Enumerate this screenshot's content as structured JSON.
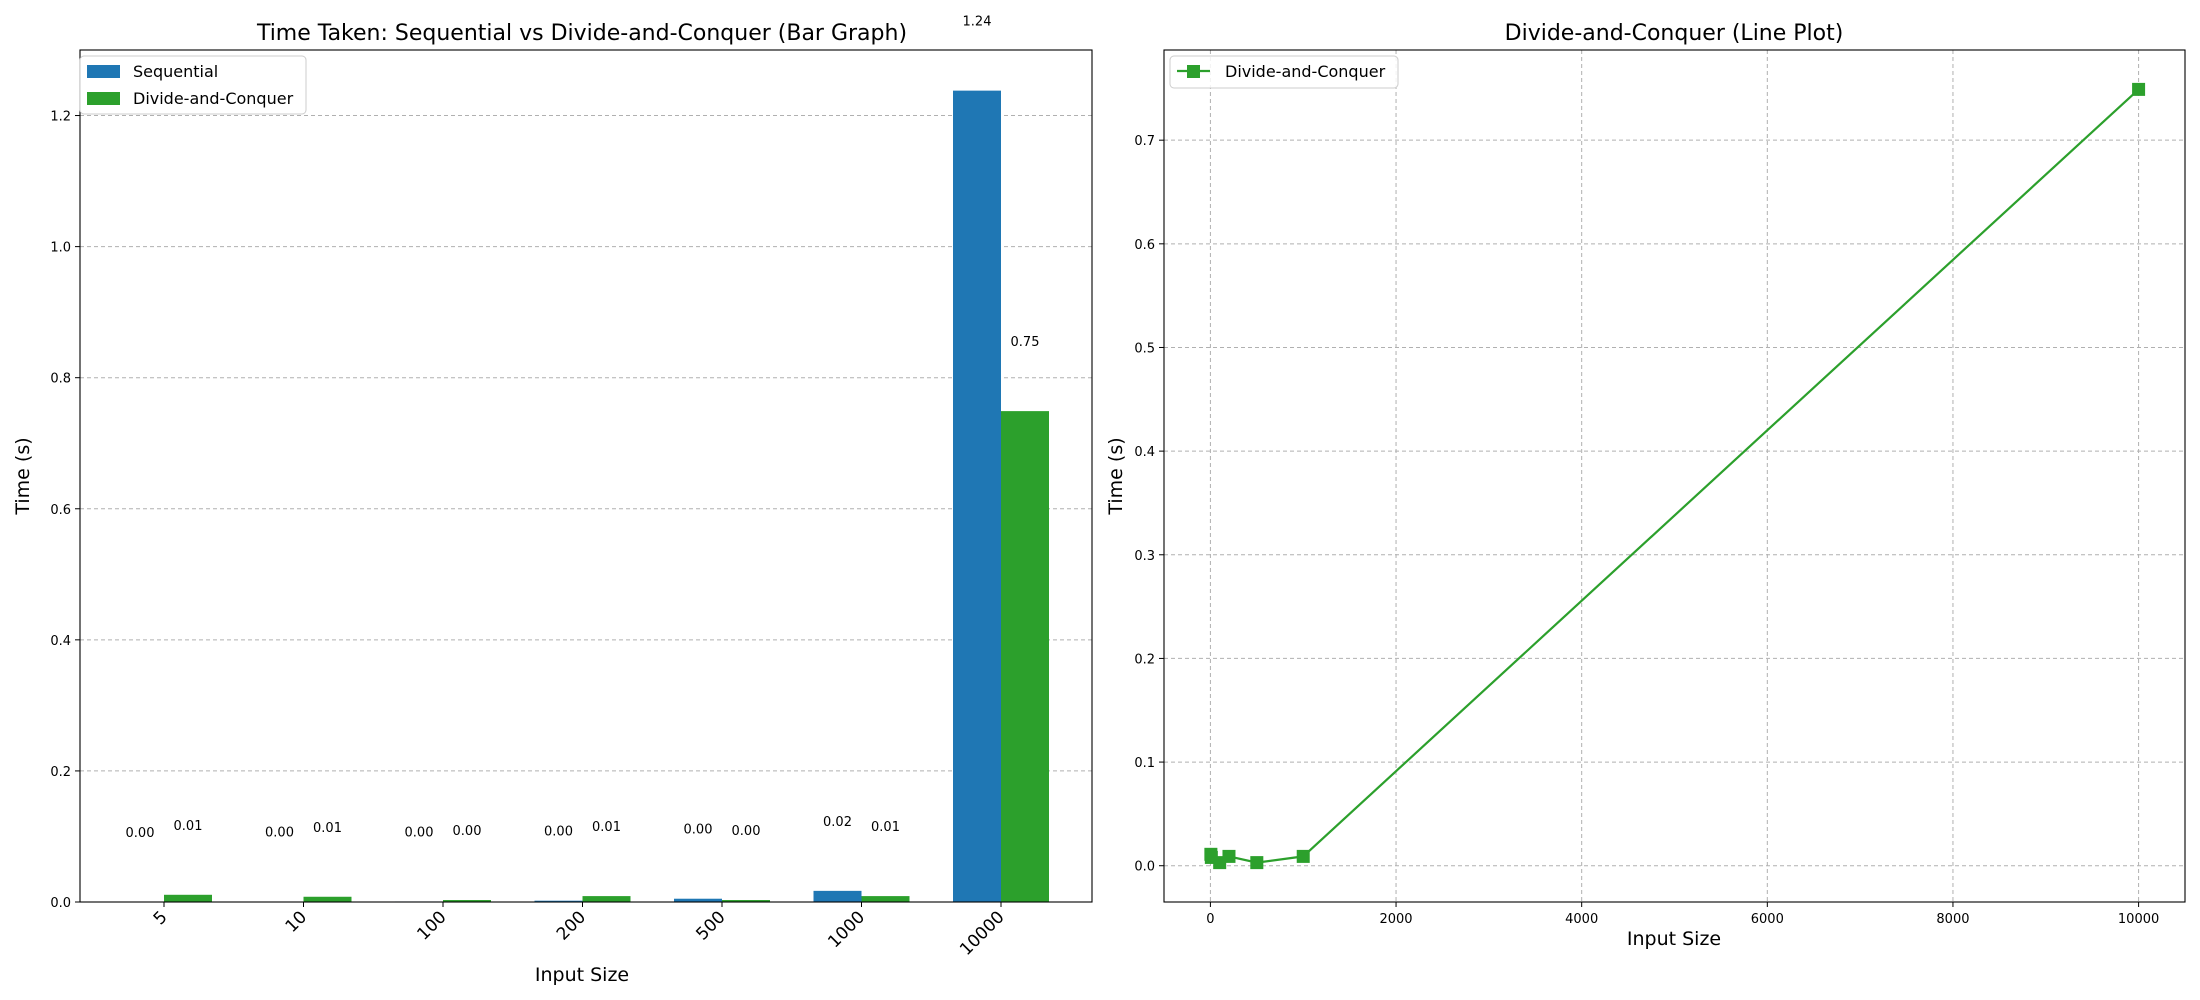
{
  "chart_data": [
    {
      "type": "bar",
      "title": "Time Taken: Sequential vs Divide-and-Conquer (Bar Graph)",
      "xlabel": "Input Size",
      "ylabel": "Time (s)",
      "categories": [
        "5",
        "10",
        "100",
        "200",
        "500",
        "1000",
        "10000"
      ],
      "series": [
        {
          "name": "Sequential",
          "color": "#1f77b4",
          "values": [
            0.0003,
            0.0005,
            0.0008,
            0.002,
            0.005,
            0.017,
            1.238
          ],
          "labels": [
            "0.00",
            "0.00",
            "0.00",
            "0.00",
            "0.00",
            "0.02",
            "1.24"
          ]
        },
        {
          "name": "Divide-and-Conquer",
          "color": "#2ca02c",
          "values": [
            0.011,
            0.008,
            0.003,
            0.009,
            0.003,
            0.009,
            0.749
          ],
          "labels": [
            "0.01",
            "0.01",
            "0.00",
            "0.01",
            "0.00",
            "0.01",
            "0.75"
          ]
        }
      ],
      "ylim": [
        0,
        1.3
      ],
      "yticks": [
        "0.0",
        "0.2",
        "0.4",
        "0.6",
        "0.8",
        "1.0",
        "1.2"
      ],
      "grid": "y",
      "legend_position": "top-left"
    },
    {
      "type": "line",
      "title": "Divide-and-Conquer (Line Plot)",
      "xlabel": "Input Size",
      "ylabel": "Time (s)",
      "series": [
        {
          "name": "Divide-and-Conquer",
          "color": "#2ca02c",
          "marker": "square",
          "x": [
            5,
            10,
            100,
            200,
            500,
            1000,
            10000
          ],
          "y": [
            0.011,
            0.008,
            0.003,
            0.009,
            0.003,
            0.009,
            0.749
          ]
        }
      ],
      "xlim": [
        -500,
        10500
      ],
      "ylim": [
        -0.035,
        0.787
      ],
      "xticks": [
        "0",
        "2000",
        "4000",
        "6000",
        "8000",
        "10000"
      ],
      "yticks": [
        "0.0",
        "0.1",
        "0.2",
        "0.3",
        "0.4",
        "0.5",
        "0.6",
        "0.7"
      ],
      "grid": "both",
      "legend_position": "top-left"
    }
  ]
}
